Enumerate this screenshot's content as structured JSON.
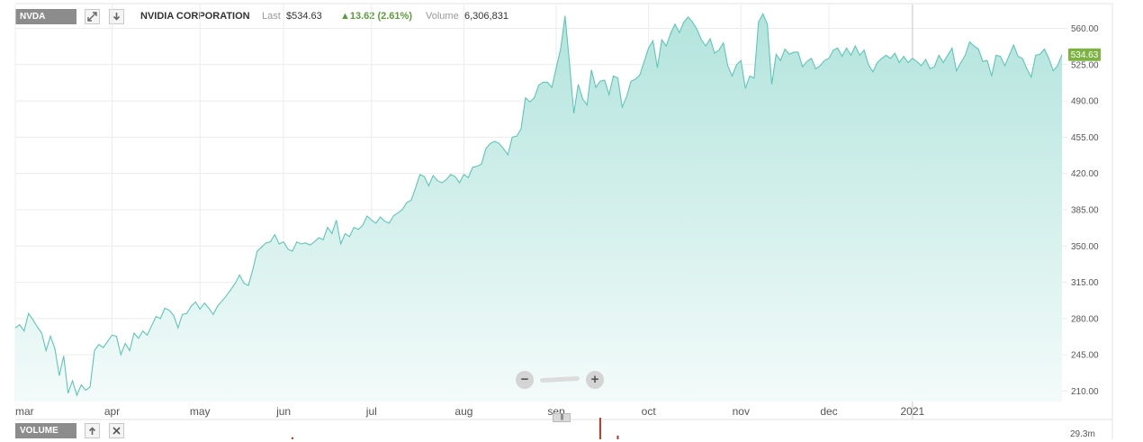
{
  "header": {
    "symbol": "NVDA",
    "company": "NVIDIA CORPORATION",
    "last_label": "Last",
    "last_value": "$534.63",
    "change": "▲13.62 (2.61%)",
    "volume_label": "Volume",
    "volume_value": "6,306,831",
    "expand_icon": "expand-icon",
    "download_icon": "download-icon"
  },
  "volume_panel": {
    "label": "VOLUME",
    "max_label": "29.3m",
    "up_icon": "arrow-up-icon",
    "close_icon": "close-icon"
  },
  "zoom": {
    "minus": "−",
    "plus": "+"
  },
  "colors": {
    "line": "#5cc6b8",
    "fill_top": "#b3e4dd",
    "fill_bottom": "#f3fbfa",
    "last_badge": "#7cb342",
    "volume_bar": "#b23a25",
    "grid": "#ececec"
  },
  "chart_data": {
    "type": "area",
    "title": "",
    "xlabel": "",
    "ylabel": "",
    "ylim": [
      200,
      583
    ],
    "y_ticks": [
      210,
      245,
      280,
      315,
      350,
      385,
      420,
      455,
      490,
      525,
      560
    ],
    "y_tick_labels": [
      "210.00",
      "245.00",
      "280.00",
      "315.00",
      "350.00",
      "385.00",
      "420.00",
      "455.00",
      "490.00",
      "525.00",
      "560.00"
    ],
    "x_labels": [
      "mar",
      "apr",
      "may",
      "jun",
      "jul",
      "aug",
      "sep",
      "oct",
      "nov",
      "dec",
      "2021"
    ],
    "x_label_positions": [
      0,
      22,
      42,
      61,
      81,
      102,
      123,
      144,
      165,
      185,
      204
    ],
    "year_separator_index": 204,
    "last_value_label": "534.63",
    "grid": true,
    "series": [
      {
        "values": [
          271,
          274,
          268,
          285,
          279,
          272,
          266,
          249,
          263,
          251,
          225,
          244,
          208,
          220,
          206,
          216,
          211,
          214,
          249,
          255,
          252,
          258,
          264,
          263,
          245,
          256,
          249,
          266,
          261,
          268,
          264,
          273,
          282,
          280,
          290,
          288,
          283,
          271,
          284,
          285,
          292,
          296,
          289,
          295,
          290,
          284,
          292,
          297,
          302,
          308,
          314,
          322,
          314,
          312,
          327,
          345,
          349,
          353,
          354,
          361,
          352,
          354,
          347,
          345,
          354,
          352,
          353,
          351,
          354,
          358,
          356,
          368,
          362,
          375,
          352,
          362,
          359,
          368,
          366,
          370,
          379,
          375,
          372,
          378,
          374,
          372,
          379,
          382,
          385,
          392,
          394,
          406,
          419,
          417,
          408,
          418,
          413,
          411,
          414,
          419,
          417,
          411,
          419,
          416,
          426,
          427,
          429,
          444,
          449,
          451,
          449,
          444,
          438,
          455,
          456,
          463,
          493,
          489,
          493,
          505,
          508,
          508,
          503,
          522,
          540,
          572,
          527,
          478,
          506,
          492,
          486,
          520,
          503,
          509,
          510,
          496,
          514,
          512,
          484,
          494,
          509,
          511,
          515,
          528,
          541,
          548,
          522,
          549,
          543,
          555,
          564,
          556,
          566,
          571,
          566,
          559,
          549,
          543,
          550,
          536,
          539,
          546,
          524,
          514,
          525,
          529,
          502,
          514,
          512,
          566,
          574,
          564,
          506,
          535,
          529,
          540,
          535,
          537,
          537,
          523,
          528,
          531,
          521,
          524,
          529,
          531,
          539,
          541,
          533,
          541,
          534,
          543,
          534,
          539,
          525,
          518,
          527,
          531,
          534,
          531,
          536,
          527,
          533,
          527,
          531,
          528,
          524,
          530,
          521,
          523,
          534,
          527,
          534,
          541,
          519,
          527,
          534,
          547,
          543,
          540,
          528,
          529,
          514,
          534,
          533,
          524,
          534,
          544,
          533,
          531,
          521,
          513,
          534,
          535,
          540,
          531,
          519,
          524,
          534.63
        ]
      }
    ],
    "volume": [
      {
        "index": 63,
        "value": 2.8
      },
      {
        "index": 133,
        "value": 29.3
      },
      {
        "index": 137,
        "value": 5.1
      }
    ]
  }
}
